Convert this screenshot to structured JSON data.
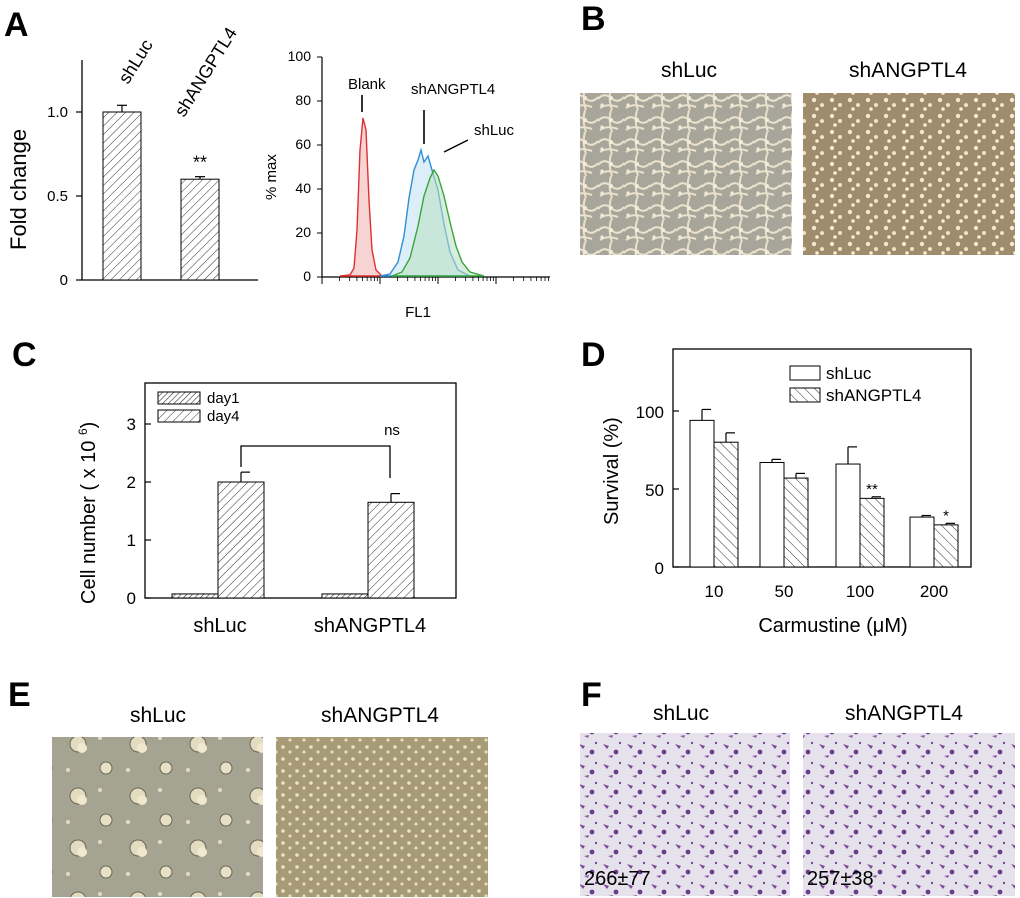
{
  "panels": {
    "A": {
      "letter": "A",
      "bar": {
        "ylabel": "Fold change",
        "yticks": [
          "0",
          "0.5",
          "1.0"
        ],
        "categories": [
          "shLuc",
          "shANGPTL4"
        ],
        "values": [
          1.0,
          0.6
        ],
        "errors": [
          0.04,
          0.015
        ],
        "significance": [
          "",
          "**"
        ],
        "ylim": [
          0,
          1.3
        ]
      },
      "hist": {
        "ylabel": "% max",
        "xlabel": "FL1",
        "yticks": [
          "0",
          "20",
          "40",
          "60",
          "80",
          "100"
        ],
        "annotations": [
          "Blank",
          "shANGPTL4",
          "shLuc"
        ],
        "colors": {
          "blank": "#e03030",
          "shANGPTL4": "#2f8fd6",
          "shLuc": "#39a53a"
        }
      }
    },
    "B": {
      "letter": "B",
      "images": [
        "shLuc",
        "shANGPTL4"
      ]
    },
    "C": {
      "letter": "C"
    },
    "D": {
      "letter": "D"
    },
    "E": {
      "letter": "E",
      "images": [
        "shLuc",
        "shANGPTL4"
      ]
    },
    "F": {
      "letter": "F",
      "images": [
        "shLuc",
        "shANGPTL4"
      ],
      "counts": [
        "266±77",
        "257±38"
      ]
    }
  },
  "chart_data": [
    {
      "type": "bar",
      "panel": "C",
      "ylabel": "Cell number ( x 10 6)",
      "ylabel_main": "Cell number ( x 10 ",
      "ylabel_sup": "6",
      "ylabel_end": ")",
      "categories": [
        "shLuc",
        "shANGPTL4"
      ],
      "yticks": [
        "0",
        "1",
        "2",
        "3"
      ],
      "ylim": [
        0,
        3.6
      ],
      "series": [
        {
          "name": "day1",
          "values": [
            0.07,
            0.07
          ],
          "errors": [
            0,
            0
          ]
        },
        {
          "name": "day4",
          "values": [
            2.0,
            1.65
          ],
          "errors": [
            0.17,
            0.15
          ]
        }
      ],
      "annotations": [
        "ns"
      ],
      "legend": "top-left"
    },
    {
      "type": "bar",
      "panel": "D",
      "xlabel": "Carmustine (μM)",
      "ylabel": "Survival (%)",
      "categories": [
        "10",
        "50",
        "100",
        "200"
      ],
      "yticks": [
        "0",
        "50",
        "100"
      ],
      "ylim": [
        0,
        140
      ],
      "series": [
        {
          "name": "shLuc",
          "values": [
            94,
            67,
            66,
            32
          ],
          "errors": [
            7,
            2,
            11,
            1
          ]
        },
        {
          "name": "shANGPTL4",
          "values": [
            80,
            57,
            44,
            27
          ],
          "errors": [
            6,
            3,
            1,
            1
          ]
        }
      ],
      "significance": [
        "",
        "",
        "**",
        "*"
      ],
      "legend": "top-right"
    }
  ]
}
